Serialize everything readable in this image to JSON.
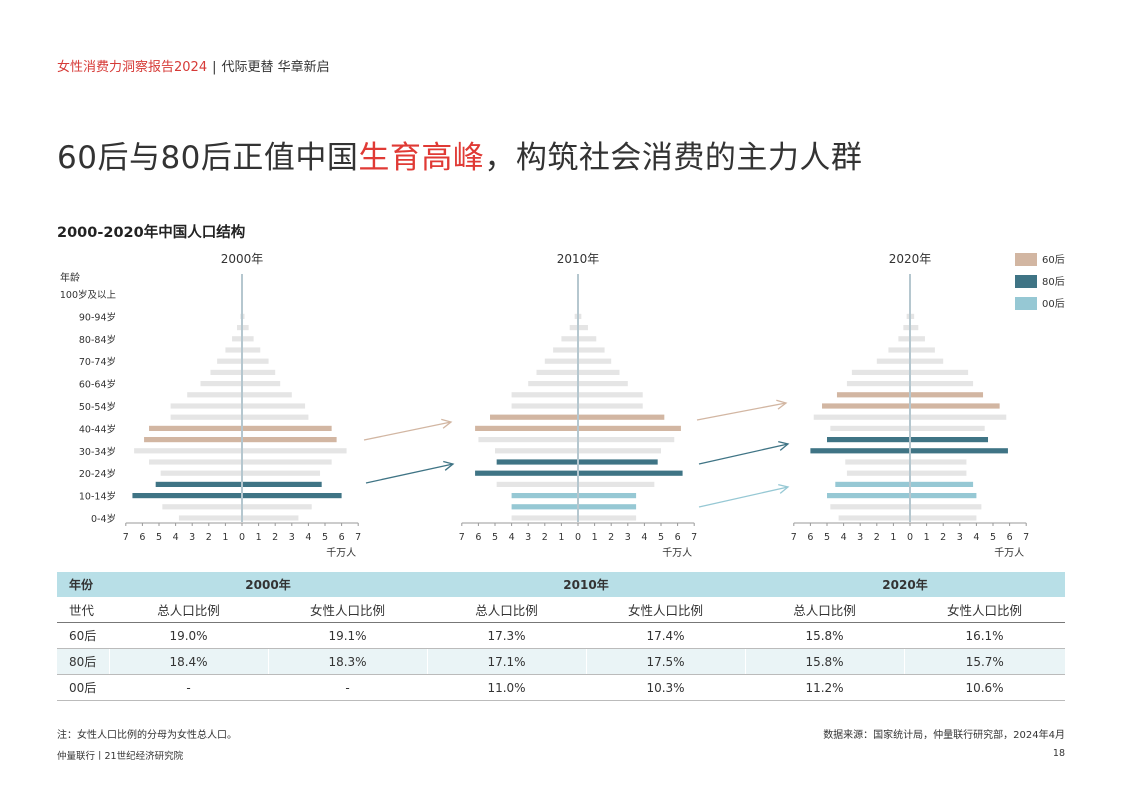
{
  "header": {
    "report_title": "女性消费力洞察报告2024",
    "separator": "|",
    "subtitle": "代际更替 华章新启"
  },
  "title": {
    "part1": "60后与80后正值中国",
    "highlight": "生育高峰",
    "part2": "，构筑社会消费的主力人群"
  },
  "chart_title": "2000-2020年中国人口结构",
  "colors": {
    "c60": "#d2b6a2",
    "c80": "#3f7485",
    "c00": "#96c8d4",
    "base": "#e5e5e5",
    "axis": "#b5c7cf"
  },
  "chart_data": {
    "type": "population-pyramid",
    "title": "2000-2020年中国人口结构",
    "y_axis_title": "年龄",
    "age_groups": [
      "0-4岁",
      "5-9岁",
      "10-14岁",
      "15-19岁",
      "20-24岁",
      "25-29岁",
      "30-34岁",
      "35-39岁",
      "40-44岁",
      "45-49岁",
      "50-54岁",
      "55-59岁",
      "60-64岁",
      "65-69岁",
      "70-74岁",
      "75-79岁",
      "80-84岁",
      "85-89岁",
      "90-94岁",
      "95-99岁",
      "100岁及以上"
    ],
    "y_tick_labels": [
      "0-4岁",
      "10-14岁",
      "20-24岁",
      "30-34岁",
      "40-44岁",
      "50-54岁",
      "60-64岁",
      "70-74岁",
      "80-84岁",
      "90-94岁",
      "100岁及以上"
    ],
    "x_ticks": [
      "7",
      "6",
      "5",
      "4",
      "3",
      "2",
      "1",
      "0",
      "1",
      "2",
      "3",
      "4",
      "5",
      "6",
      "7"
    ],
    "x_unit": "千万人",
    "xlim": [
      -7,
      7
    ],
    "legend": [
      {
        "label": "60后",
        "key": "c60"
      },
      {
        "label": "80后",
        "key": "c80"
      },
      {
        "label": "00后",
        "key": "c00"
      }
    ],
    "panels": [
      {
        "year": "2000年",
        "male": [
          3.8,
          4.8,
          6.6,
          5.2,
          4.9,
          5.6,
          6.5,
          5.9,
          5.6,
          4.3,
          4.3,
          3.3,
          2.5,
          1.9,
          1.5,
          1.0,
          0.6,
          0.3,
          0.1,
          0.05,
          0.02
        ],
        "female": [
          3.4,
          4.2,
          6.0,
          4.8,
          4.7,
          5.4,
          6.3,
          5.7,
          5.4,
          4.0,
          3.8,
          3.0,
          2.3,
          2.0,
          1.6,
          1.1,
          0.7,
          0.4,
          0.15,
          0.05,
          0.02
        ],
        "cohorts": {
          "c60": [
            7,
            8
          ],
          "c80": [
            2,
            3
          ]
        }
      },
      {
        "year": "2010年",
        "male": [
          4.0,
          4.0,
          4.0,
          4.9,
          6.2,
          4.9,
          5.0,
          6.0,
          6.2,
          5.3,
          4.0,
          4.0,
          3.0,
          2.5,
          2.0,
          1.5,
          1.0,
          0.5,
          0.2,
          0.05,
          0.02
        ],
        "female": [
          3.5,
          3.5,
          3.5,
          4.6,
          6.3,
          4.8,
          5.0,
          5.8,
          6.2,
          5.2,
          3.9,
          3.9,
          3.0,
          2.5,
          2.0,
          1.6,
          1.1,
          0.6,
          0.2,
          0.05,
          0.02
        ],
        "cohorts": {
          "c60": [
            8,
            9
          ],
          "c80": [
            4,
            5
          ],
          "c00": [
            1,
            2
          ]
        }
      },
      {
        "year": "2020年",
        "male": [
          4.3,
          4.8,
          5.0,
          4.5,
          3.8,
          3.9,
          6.0,
          5.0,
          4.8,
          5.8,
          5.3,
          4.4,
          3.8,
          3.5,
          2.0,
          1.3,
          0.7,
          0.4,
          0.2,
          0.05,
          0.02
        ],
        "female": [
          4.0,
          4.3,
          4.0,
          3.8,
          3.4,
          3.4,
          5.9,
          4.7,
          4.5,
          5.8,
          5.4,
          4.4,
          3.8,
          3.5,
          2.0,
          1.5,
          0.9,
          0.5,
          0.25,
          0.05,
          0.02
        ],
        "cohorts": {
          "c60": [
            10,
            11
          ],
          "c80": [
            6,
            7
          ],
          "c00": [
            2,
            3
          ]
        }
      }
    ]
  },
  "table": {
    "year_label": "年份",
    "years": [
      "2000年",
      "2010年",
      "2020年"
    ],
    "gen_label": "世代",
    "col_total": "总人口比例",
    "col_female": "女性人口比例",
    "rows": [
      {
        "gen": "60后",
        "values": [
          "19.0%",
          "19.1%",
          "17.3%",
          "17.4%",
          "15.8%",
          "16.1%"
        ]
      },
      {
        "gen": "80后",
        "values": [
          "18.4%",
          "18.3%",
          "17.1%",
          "17.5%",
          "15.8%",
          "15.7%"
        ]
      },
      {
        "gen": "00后",
        "values": [
          "-",
          "-",
          "11.0%",
          "10.3%",
          "11.2%",
          "10.6%"
        ]
      }
    ]
  },
  "note": "注：女性人口比例的分母为女性总人口。",
  "source": "数据来源：国家统计局，仲量联行研究部，2024年4月",
  "footer": {
    "left": "仲量联行丨21世纪经济研究院",
    "page": "18"
  }
}
